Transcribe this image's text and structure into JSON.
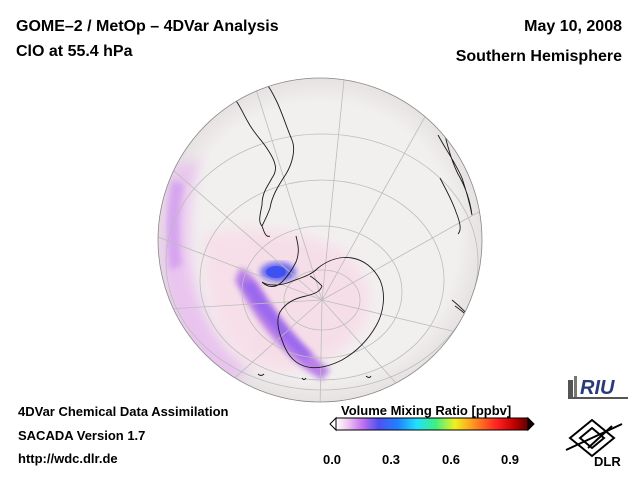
{
  "header": {
    "title_line1": "GOME–2 / MetOp – 4DVar Analysis",
    "title_line2": "ClO at 55.4 hPa",
    "date": "May 10, 2008",
    "region": "Southern Hemisphere"
  },
  "footer": {
    "line1": "4DVar Chemical Data Assimilation",
    "line2": "SACADA Version 1.7",
    "line3": "http://wdc.dlr.de"
  },
  "colorbar": {
    "label": "Volume Mixing Ratio [ppbv]",
    "ticks": [
      "0.0",
      "0.3",
      "0.6",
      "0.9"
    ],
    "tick_values": [
      0.0,
      0.3,
      0.6,
      0.9
    ],
    "range": [
      0.0,
      1.0
    ],
    "colors": [
      "#ffffff",
      "#f2c8f0",
      "#c070f0",
      "#5050f0",
      "#2080ff",
      "#20e0ff",
      "#40f080",
      "#f0f020",
      "#ff9020",
      "#ff2020",
      "#c00000",
      "#600000"
    ]
  },
  "logos": {
    "riu_text": "RIU",
    "dlr_text": "DLR"
  },
  "map": {
    "projection": "orthographic",
    "hemisphere": "south",
    "land_color": "#f2efef",
    "ocean_color": "#f2efef",
    "globe_background": "#f0eded"
  }
}
